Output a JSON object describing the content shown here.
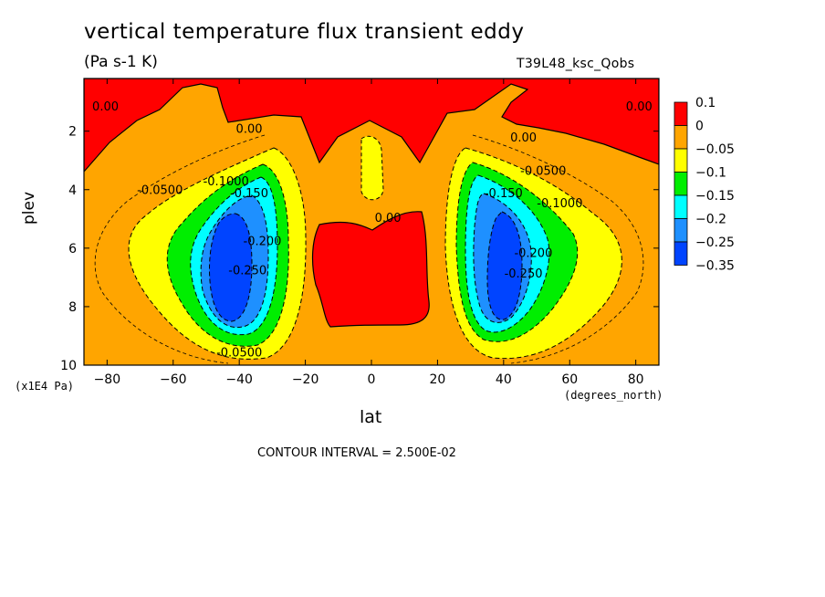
{
  "chart_data": {
    "type": "heatmap",
    "title": "vertical temperature flux transient eddy",
    "units": "(Pa s-1 K)",
    "run_label": "T39L48_ksc_Qobs",
    "xlabel": "lat",
    "ylabel": "plev",
    "x_units": "(degrees_north)",
    "y_units": "(x1E4 Pa)",
    "xlim": [
      -87,
      87
    ],
    "ylim": [
      10,
      0.2
    ],
    "x_ticks": [
      -80,
      -60,
      -40,
      -20,
      0,
      20,
      40,
      60,
      80
    ],
    "x_tick_labels": [
      "−80",
      "−60",
      "−40",
      "−20",
      "0",
      "20",
      "40",
      "60",
      "80"
    ],
    "y_ticks": [
      2,
      4,
      6,
      8,
      10
    ],
    "y_tick_labels": [
      "2",
      "4",
      "6",
      "8",
      "10"
    ],
    "contour_interval_text": "CONTOUR INTERVAL = 2.500E-02",
    "colorbar": {
      "levels": [
        0.1,
        0,
        -0.05,
        -0.1,
        -0.15,
        -0.2,
        -0.25,
        -0.35
      ],
      "labels": [
        "0.1",
        "0",
        "−0.05",
        "−0.1",
        "−0.15",
        "−0.2",
        "−0.25",
        "−0.35"
      ],
      "colors": [
        "#ff0000",
        "#ffa500",
        "#ffff00",
        "#00ee00",
        "#00ffff",
        "#1e90ff",
        "#0044ff"
      ]
    },
    "contour_labels": [
      {
        "text": "0.00",
        "x": -80.5,
        "y": 1.3
      },
      {
        "text": "0.00",
        "x": -37,
        "y": 2.05
      },
      {
        "text": "0.00",
        "x": 46,
        "y": 2.35
      },
      {
        "text": "0.00",
        "x": 81,
        "y": 1.3
      },
      {
        "text": "0.00",
        "x": 5,
        "y": 5.1
      },
      {
        "text": "-0.0500",
        "x": -64,
        "y": 4.15
      },
      {
        "text": "-0.1000",
        "x": -44,
        "y": 3.85
      },
      {
        "text": "-0.150",
        "x": -37,
        "y": 4.25
      },
      {
        "text": "-0.200",
        "x": -33,
        "y": 5.9
      },
      {
        "text": "-0.250",
        "x": -37.5,
        "y": 6.9
      },
      {
        "text": "-0.0500",
        "x": -40,
        "y": 9.7
      },
      {
        "text": "-0.0500",
        "x": 52,
        "y": 3.5
      },
      {
        "text": "-0.1000",
        "x": 57,
        "y": 4.6
      },
      {
        "text": "-0.150",
        "x": 40,
        "y": 4.25
      },
      {
        "text": "-0.200",
        "x": 49,
        "y": 6.3
      },
      {
        "text": "-0.250",
        "x": 46,
        "y": 7.0
      }
    ]
  }
}
